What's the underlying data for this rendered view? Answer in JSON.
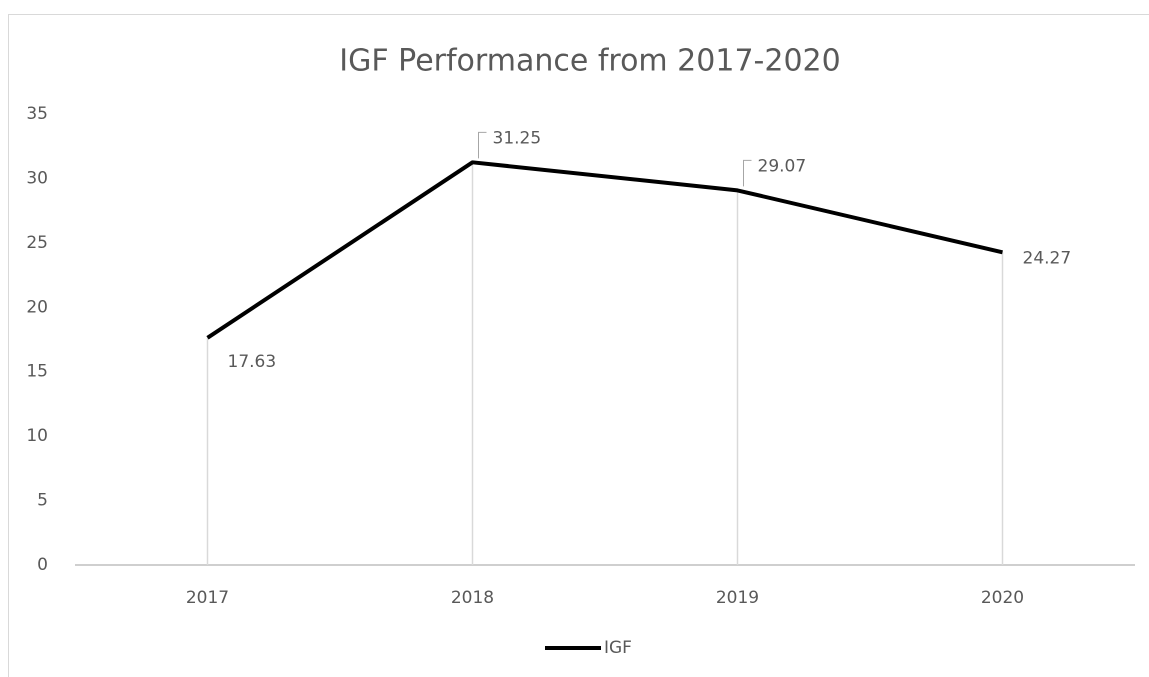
{
  "chart_data": {
    "type": "line",
    "title": "IGF Performance from 2017-2020",
    "categories": [
      "2017",
      "2018",
      "2019",
      "2020"
    ],
    "series": [
      {
        "name": "IGF",
        "color": "#000000",
        "values": [
          17.63,
          31.25,
          29.07,
          24.27
        ]
      }
    ],
    "ylim": [
      0,
      35
    ],
    "yticks": [
      0,
      5,
      10,
      15,
      20,
      25,
      30,
      35
    ],
    "grid": false,
    "drop_lines": true,
    "legend": "bottom"
  }
}
